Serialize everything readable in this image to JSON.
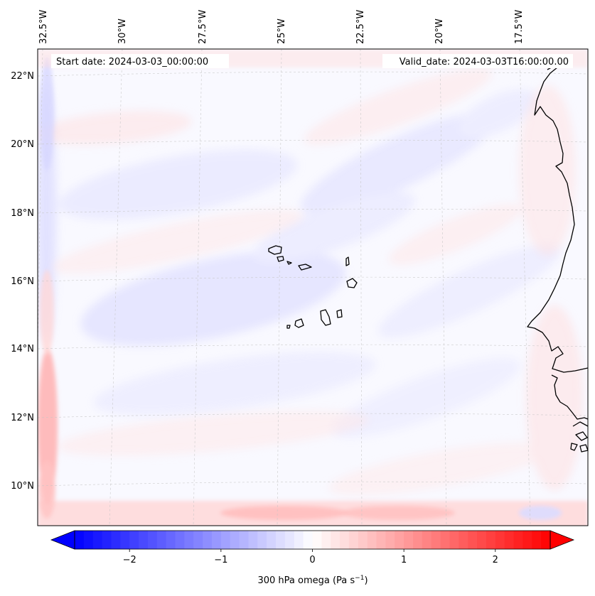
{
  "map": {
    "start_label": "Start date: 2024-03-03_00:00:00",
    "valid_label": "Valid_date: 2024-03-03T16:00:00.00",
    "lon_labels": [
      "32.5°W",
      "30°W",
      "27.5°W",
      "25°W",
      "22.5°W",
      "20°W",
      "17.5°W"
    ],
    "lat_labels": [
      "22°N",
      "20°N",
      "18°N",
      "16°N",
      "14°N",
      "12°N",
      "10°N"
    ],
    "gridlines": true,
    "coastline_color": "#000000"
  },
  "colorbar": {
    "label_main": "300 hPa omega (Pa s",
    "label_exp": "−1",
    "label_close": ")",
    "tick_labels": [
      "−2",
      "−1",
      "0",
      "1",
      "2"
    ],
    "tick_values": [
      -2,
      -1,
      0,
      1,
      2
    ],
    "range": [
      -2.6,
      2.6
    ],
    "extend": "both",
    "colormap": "bwr",
    "colors": {
      "low": "#0000ff",
      "mid": "#ffffff",
      "high": "#ff0000"
    }
  }
}
